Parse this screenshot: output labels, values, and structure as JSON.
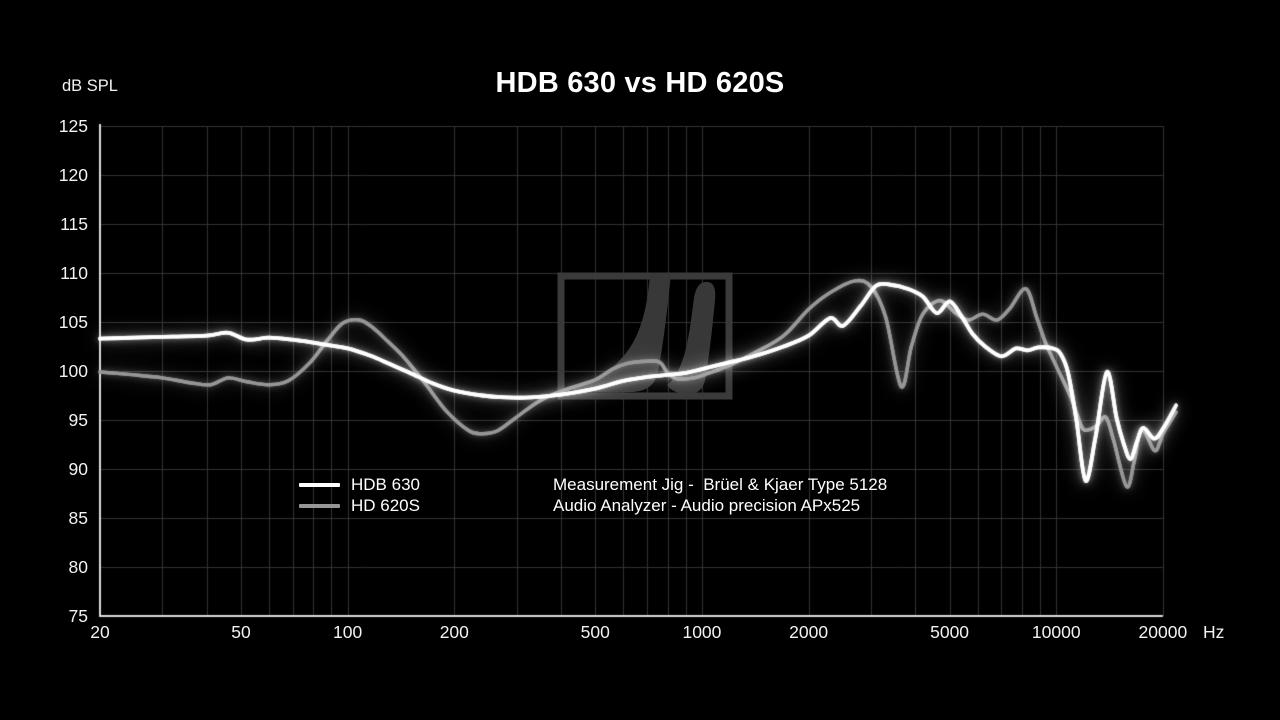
{
  "page": {
    "background": "#000000"
  },
  "header": {
    "title": "HDB 630 vs HD 620S"
  },
  "notes": {
    "line1": "Measurement Jig -  Brüel & Kjaer Type 5128",
    "line2": "Audio Analyzer - Audio precision APx525"
  },
  "legend": {
    "items": [
      {
        "label": "HDB 630",
        "color": "#ffffff"
      },
      {
        "label": "HD 620S",
        "color": "#969696"
      }
    ]
  },
  "watermark": {
    "name": "sennheiser-logo",
    "frame_color": "#3a3a3a",
    "fill_color": "#383838"
  },
  "chart_data": {
    "type": "line",
    "title": "HDB 630 vs HD 620S",
    "x_axis": {
      "unit": "Hz",
      "scale": "log",
      "min": 20,
      "max": 20000,
      "ticks": [
        20,
        50,
        100,
        200,
        500,
        1000,
        2000,
        5000,
        10000,
        20000
      ],
      "minor_gridlines": "log decades 20-20000"
    },
    "y_axis": {
      "unit_label": "dB SPL",
      "min": 75,
      "max": 125,
      "tick_step": 5,
      "ticks": [
        125,
        120,
        115,
        110,
        105,
        100,
        95,
        90,
        85,
        80,
        75
      ]
    },
    "grid": {
      "visible": true,
      "color": "#333333",
      "axis_color": "#dcdcdc"
    },
    "legend_position": "bottom-left-inside",
    "annotations": [
      "Measurement Jig -  Brüel & Kjaer Type 5128",
      "Audio Analyzer - Audio precision APx525"
    ],
    "series": [
      {
        "name": "HDB 630",
        "color": "#ffffff",
        "glow": "rgba(255,255,255,0.55)",
        "fade_rgba": "rgba(255,255,255,0)",
        "points": [
          [
            20,
            103.3
          ],
          [
            25,
            103.4
          ],
          [
            32,
            103.5
          ],
          [
            40,
            103.6
          ],
          [
            46,
            103.9
          ],
          [
            52,
            103.2
          ],
          [
            60,
            103.4
          ],
          [
            70,
            103.2
          ],
          [
            80,
            102.9
          ],
          [
            90,
            102.6
          ],
          [
            100,
            102.3
          ],
          [
            115,
            101.6
          ],
          [
            130,
            100.8
          ],
          [
            150,
            99.8
          ],
          [
            175,
            98.7
          ],
          [
            200,
            98.0
          ],
          [
            240,
            97.5
          ],
          [
            280,
            97.3
          ],
          [
            330,
            97.3
          ],
          [
            400,
            97.6
          ],
          [
            500,
            98.2
          ],
          [
            600,
            99.0
          ],
          [
            700,
            99.4
          ],
          [
            800,
            99.6
          ],
          [
            900,
            99.8
          ],
          [
            1000,
            100.2
          ],
          [
            1200,
            100.9
          ],
          [
            1400,
            101.5
          ],
          [
            1700,
            102.5
          ],
          [
            2000,
            103.6
          ],
          [
            2300,
            105.4
          ],
          [
            2500,
            104.6
          ],
          [
            2800,
            106.6
          ],
          [
            3100,
            108.7
          ],
          [
            3400,
            108.8
          ],
          [
            3800,
            108.4
          ],
          [
            4200,
            107.6
          ],
          [
            4600,
            105.9
          ],
          [
            5000,
            107.1
          ],
          [
            5400,
            105.6
          ],
          [
            5800,
            103.8
          ],
          [
            6300,
            102.5
          ],
          [
            7000,
            101.5
          ],
          [
            7700,
            102.3
          ],
          [
            8300,
            102.1
          ],
          [
            8900,
            102.4
          ],
          [
            9800,
            102.3
          ],
          [
            10300,
            101.7
          ],
          [
            10800,
            99.8
          ],
          [
            11400,
            95.0
          ],
          [
            12100,
            88.8
          ],
          [
            12900,
            93.2
          ],
          [
            13900,
            99.9
          ],
          [
            14800,
            95.2
          ],
          [
            15500,
            92.6
          ],
          [
            16200,
            91.0
          ],
          [
            16900,
            92.8
          ],
          [
            17600,
            94.2
          ],
          [
            18900,
            93.1
          ],
          [
            20000,
            94.1
          ],
          [
            21800,
            96.5
          ]
        ]
      },
      {
        "name": "HD 620S",
        "color": "#969696",
        "glow": "rgba(210,210,210,0.4)",
        "fade_rgba": "rgba(150,150,150,0)",
        "points": [
          [
            20,
            99.9
          ],
          [
            25,
            99.6
          ],
          [
            30,
            99.3
          ],
          [
            36,
            98.8
          ],
          [
            41,
            98.6
          ],
          [
            46,
            99.3
          ],
          [
            52,
            98.9
          ],
          [
            60,
            98.6
          ],
          [
            68,
            99.0
          ],
          [
            78,
            100.8
          ],
          [
            88,
            103.2
          ],
          [
            97,
            104.9
          ],
          [
            108,
            105.2
          ],
          [
            118,
            104.4
          ],
          [
            130,
            103.0
          ],
          [
            145,
            101.3
          ],
          [
            165,
            98.8
          ],
          [
            190,
            95.9
          ],
          [
            220,
            93.9
          ],
          [
            240,
            93.6
          ],
          [
            265,
            93.9
          ],
          [
            300,
            95.3
          ],
          [
            350,
            97.0
          ],
          [
            420,
            98.2
          ],
          [
            500,
            99.1
          ],
          [
            560,
            100.2
          ],
          [
            620,
            100.8
          ],
          [
            700,
            101.0
          ],
          [
            760,
            100.9
          ],
          [
            800,
            99.8
          ],
          [
            850,
            99.2
          ],
          [
            950,
            99.3
          ],
          [
            1050,
            99.8
          ],
          [
            1200,
            100.6
          ],
          [
            1400,
            101.8
          ],
          [
            1700,
            103.6
          ],
          [
            2000,
            106.3
          ],
          [
            2300,
            108.0
          ],
          [
            2700,
            109.2
          ],
          [
            3000,
            108.6
          ],
          [
            3300,
            105.5
          ],
          [
            3650,
            98.4
          ],
          [
            3900,
            102.5
          ],
          [
            4200,
            105.8
          ],
          [
            4700,
            107.2
          ],
          [
            5200,
            105.9
          ],
          [
            5650,
            105.2
          ],
          [
            6200,
            105.8
          ],
          [
            6800,
            105.2
          ],
          [
            7400,
            106.4
          ],
          [
            8200,
            108.4
          ],
          [
            8800,
            105.5
          ],
          [
            9300,
            103.0
          ],
          [
            10000,
            100.5
          ],
          [
            11000,
            97.3
          ],
          [
            11800,
            94.3
          ],
          [
            12300,
            94.0
          ],
          [
            13000,
            94.4
          ],
          [
            13800,
            95.3
          ],
          [
            14500,
            93.0
          ],
          [
            15800,
            88.2
          ],
          [
            16600,
            90.8
          ],
          [
            17400,
            94.1
          ],
          [
            18900,
            91.9
          ],
          [
            19600,
            92.7
          ],
          [
            20000,
            93.6
          ],
          [
            21800,
            95.8
          ]
        ]
      }
    ]
  }
}
